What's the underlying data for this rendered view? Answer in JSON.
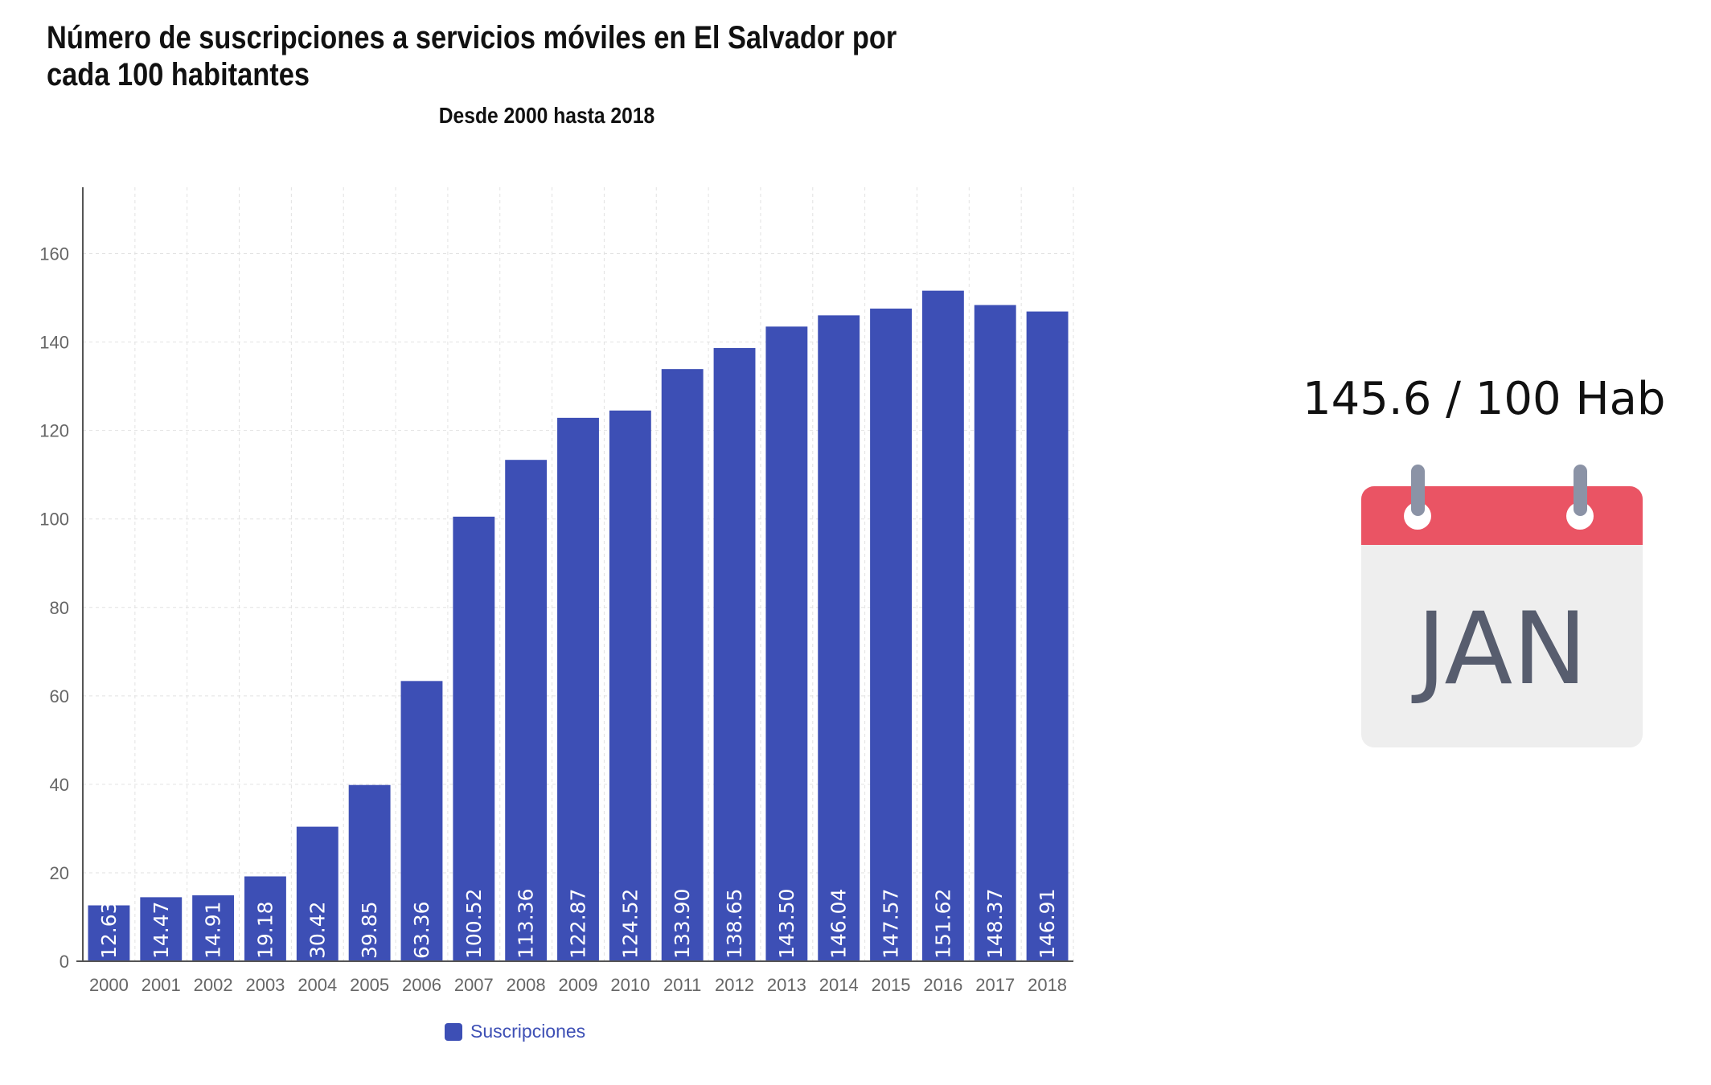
{
  "chart_data": {
    "type": "bar",
    "title": "Número de suscripciones a servicios móviles en El Salvador por cada 100 habitantes",
    "subtitle": "Desde 2000 hasta 2018",
    "xlabel": "",
    "ylabel": "",
    "ylim": [
      0,
      175
    ],
    "yticks": [
      0,
      20,
      40,
      60,
      80,
      100,
      120,
      140,
      160
    ],
    "grid": true,
    "legend_position": "bottom",
    "categories": [
      "2000",
      "2001",
      "2002",
      "2003",
      "2004",
      "2005",
      "2006",
      "2007",
      "2008",
      "2009",
      "2010",
      "2011",
      "2012",
      "2013",
      "2014",
      "2015",
      "2016",
      "2017",
      "2018"
    ],
    "series": [
      {
        "name": "Suscripciones",
        "color": "#3d4fb5",
        "values": [
          12.63,
          14.47,
          14.91,
          19.18,
          30.42,
          39.85,
          63.36,
          100.52,
          113.36,
          122.87,
          124.52,
          133.9,
          138.65,
          143.5,
          146.04,
          147.57,
          151.62,
          148.37,
          146.91
        ],
        "labels": [
          "12.63",
          "14.47",
          "14.91",
          "19.18",
          "30.42",
          "39.85",
          "63.36",
          "100.52",
          "113.36",
          "122.87",
          "124.52",
          "133.90",
          "138.65",
          "143.50",
          "146.04",
          "147.57",
          "151.62",
          "148.37",
          "146.91"
        ]
      }
    ]
  },
  "stat": {
    "text": "145.6 / 100 Hab"
  },
  "calendar": {
    "icon": "calendar-icon",
    "month": "JAN",
    "header_color": "#ea5464",
    "body_color": "#eeeeee",
    "text_color": "#575d6e"
  }
}
